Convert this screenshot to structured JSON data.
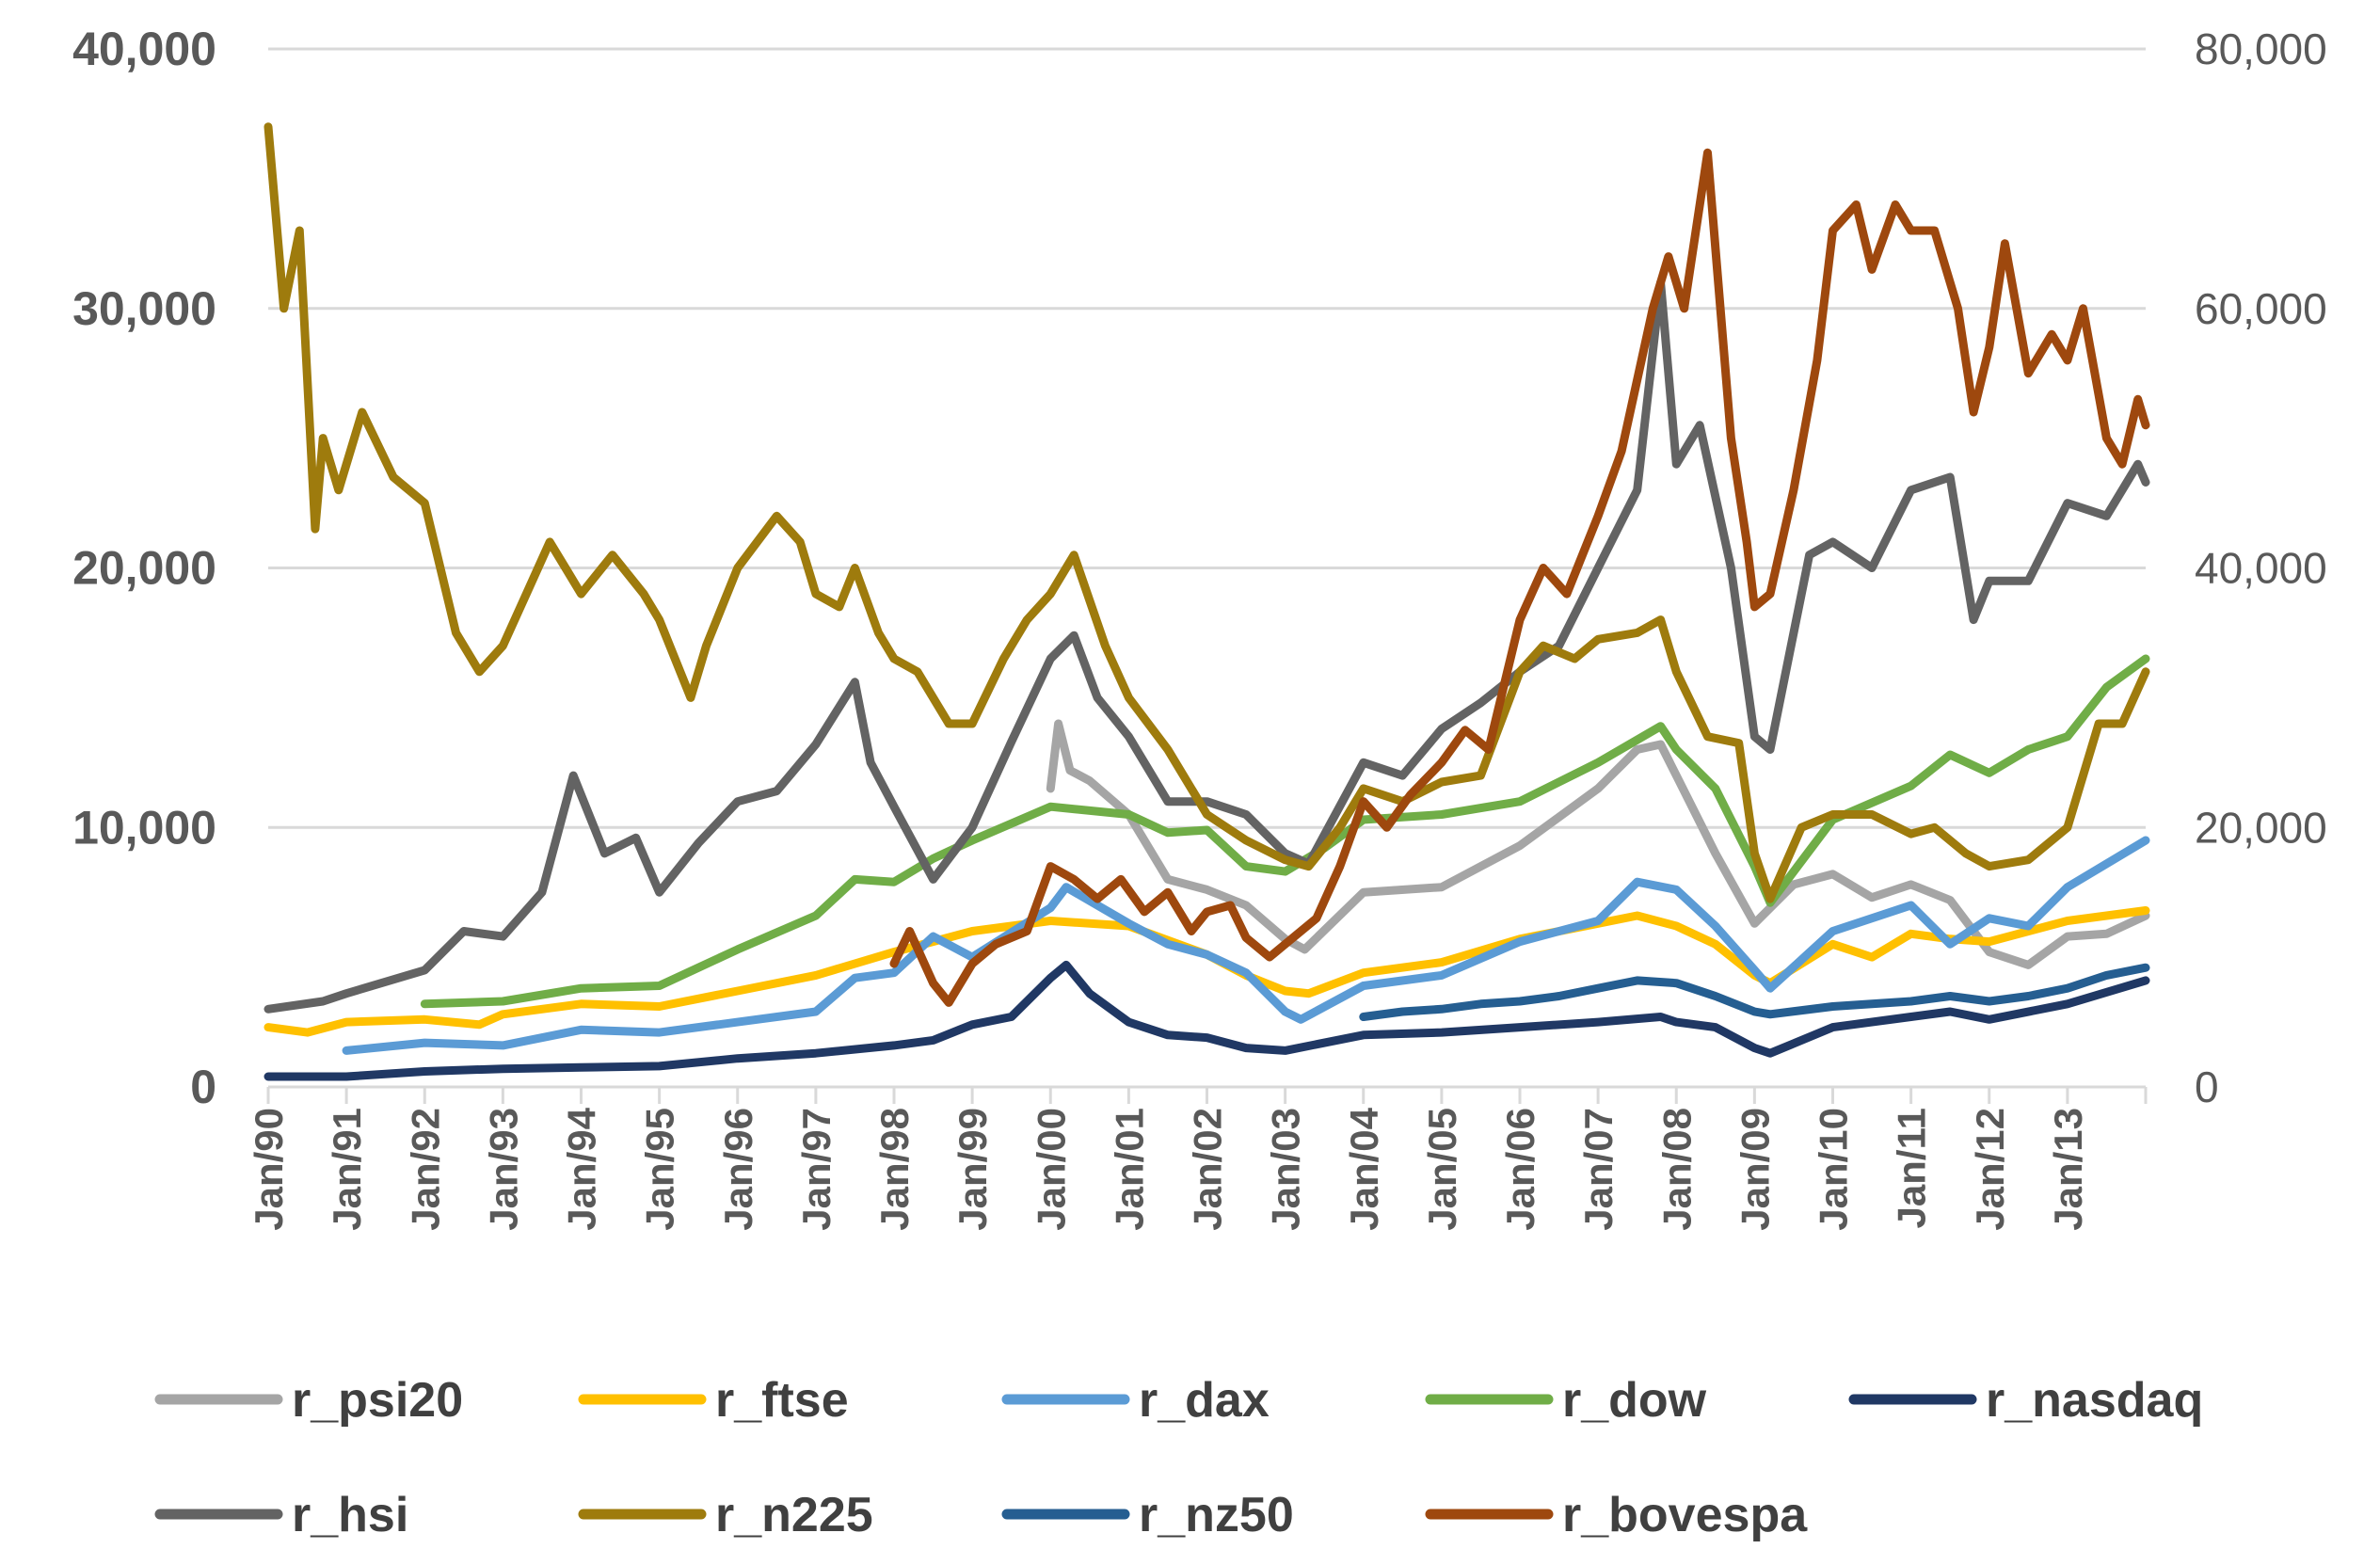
{
  "chart_data": {
    "type": "line",
    "title": "",
    "xlabel": "",
    "ylabel": "",
    "ylim": [
      0,
      40000
    ],
    "y2lim": [
      0,
      80000
    ],
    "y_ticks": [
      0,
      10000,
      20000,
      30000,
      40000
    ],
    "y_tick_labels": [
      "0",
      "10,000",
      "20,000",
      "30,000",
      "40,000"
    ],
    "y2_ticks": [
      0,
      20000,
      40000,
      60000,
      80000
    ],
    "y2_tick_labels": [
      "0",
      "20,000",
      "40,000",
      "60,000",
      "80,000"
    ],
    "xlim": [
      1990.0,
      2014.0
    ],
    "x_ticks": [
      1990,
      1991,
      1992,
      1993,
      1994,
      1995,
      1996,
      1997,
      1998,
      1999,
      2000,
      2001,
      2002,
      2003,
      2004,
      2005,
      2006,
      2007,
      2008,
      2009,
      2010,
      2011,
      2012,
      2013
    ],
    "x_tick_labels": [
      "Jan/90",
      "Jan/91",
      "Jan/92",
      "Jan/93",
      "Jan/94",
      "Jan/95",
      "Jan/96",
      "Jan/97",
      "Jan/98",
      "Jan/99",
      "Jan/00",
      "Jan/01",
      "Jan/02",
      "Jan/03",
      "Jan/04",
      "Jan/05",
      "Jan/06",
      "Jan/07",
      "Jan/08",
      "Jan/09",
      "Jan/10",
      "Jan/11",
      "Jan/12",
      "Jan/13"
    ],
    "grid": true,
    "legend_position": "bottom",
    "series": [
      {
        "name": "r_psi20",
        "color": "#a5a5a5",
        "axis": "left",
        "x": [
          2000.0,
          2000.1,
          2000.25,
          2000.5,
          2001.0,
          2001.5,
          2002.0,
          2002.5,
          2003.0,
          2003.25,
          2004.0,
          2005.0,
          2006.0,
          2006.5,
          2007.0,
          2007.5,
          2007.8,
          2008.0,
          2008.5,
          2009.0,
          2009.5,
          2010.0,
          2010.5,
          2011.0,
          2011.5,
          2012.0,
          2012.5,
          2013.0,
          2013.5,
          2014.0
        ],
        "y": [
          11500,
          14000,
          12200,
          11800,
          10500,
          8000,
          7600,
          7000,
          5700,
          5300,
          7500,
          7700,
          9300,
          10400,
          11500,
          13000,
          13200,
          12000,
          9000,
          6300,
          7800,
          8200,
          7300,
          7800,
          7200,
          5200,
          4700,
          5800,
          5900,
          6600
        ]
      },
      {
        "name": "r_ftse",
        "color": "#ffc000",
        "axis": "left",
        "x": [
          1990.0,
          1990.5,
          1991.0,
          1992.0,
          1992.7,
          1993.0,
          1994.0,
          1995.0,
          1996.0,
          1997.0,
          1998.0,
          1999.0,
          2000.0,
          2001.0,
          2002.0,
          2002.5,
          2003.0,
          2003.3,
          2004.0,
          2005.0,
          2006.0,
          2007.0,
          2007.5,
          2008.0,
          2008.5,
          2009.0,
          2009.2,
          2010.0,
          2010.5,
          2011.0,
          2011.5,
          2012.0,
          2013.0,
          2014.0
        ],
        "y": [
          2300,
          2100,
          2500,
          2600,
          2400,
          2800,
          3200,
          3100,
          3700,
          4300,
          5200,
          6000,
          6400,
          6200,
          5100,
          4300,
          3700,
          3600,
          4400,
          4800,
          5700,
          6300,
          6600,
          6200,
          5500,
          4300,
          4000,
          5500,
          5000,
          5900,
          5700,
          5600,
          6400,
          6800
        ]
      },
      {
        "name": "r_dax",
        "color": "#5b9bd5",
        "axis": "left",
        "x": [
          1991.0,
          1992.0,
          1993.0,
          1994.0,
          1995.0,
          1996.0,
          1997.0,
          1997.5,
          1998.0,
          1998.5,
          1999.0,
          2000.0,
          2000.2,
          2001.0,
          2001.5,
          2002.0,
          2002.5,
          2003.0,
          2003.2,
          2004.0,
          2005.0,
          2006.0,
          2007.0,
          2007.5,
          2008.0,
          2008.5,
          2009.0,
          2009.2,
          2010.0,
          2011.0,
          2011.5,
          2012.0,
          2012.5,
          2013.0,
          2014.0
        ],
        "y": [
          1400,
          1700,
          1600,
          2200,
          2100,
          2500,
          2900,
          4200,
          4400,
          5800,
          5000,
          6900,
          7700,
          6300,
          5500,
          5100,
          4400,
          2900,
          2600,
          3900,
          4300,
          5600,
          6400,
          7900,
          7600,
          6200,
          4500,
          3800,
          6000,
          7000,
          5500,
          6500,
          6200,
          7700,
          9500
        ]
      },
      {
        "name": "r_dow",
        "color": "#70ad47",
        "axis": "left",
        "x": [
          1992.0,
          1993.0,
          1994.0,
          1995.0,
          1996.0,
          1997.0,
          1997.5,
          1998.0,
          1998.5,
          1999.0,
          2000.0,
          2001.0,
          2001.5,
          2002.0,
          2002.5,
          2003.0,
          2003.5,
          2004.0,
          2005.0,
          2006.0,
          2007.0,
          2007.8,
          2008.0,
          2008.5,
          2009.0,
          2009.2,
          2010.0,
          2011.0,
          2011.5,
          2012.0,
          2012.5,
          2013.0,
          2013.5,
          2014.0
        ],
        "y": [
          3200,
          3300,
          3800,
          3900,
          5300,
          6600,
          8000,
          7900,
          8800,
          9500,
          10800,
          10500,
          9800,
          9900,
          8500,
          8300,
          9200,
          10300,
          10500,
          11000,
          12500,
          13900,
          13000,
          11500,
          8500,
          7100,
          10300,
          11600,
          12800,
          12100,
          13000,
          13500,
          15400,
          16500
        ]
      },
      {
        "name": "r_nasdaq",
        "color": "#203864",
        "axis": "left",
        "x": [
          1990.0,
          1991.0,
          1992.0,
          1993.0,
          1994.0,
          1995.0,
          1996.0,
          1997.0,
          1998.0,
          1998.5,
          1999.0,
          1999.5,
          2000.0,
          2000.2,
          2000.5,
          2001.0,
          2001.5,
          2002.0,
          2002.5,
          2003.0,
          2004.0,
          2005.0,
          2006.0,
          2007.0,
          2007.8,
          2008.0,
          2008.5,
          2009.0,
          2009.2,
          2010.0,
          2011.0,
          2011.5,
          2012.0,
          2013.0,
          2014.0
        ],
        "y": [
          400,
          400,
          600,
          700,
          750,
          800,
          1100,
          1300,
          1600,
          1800,
          2400,
          2700,
          4200,
          4700,
          3600,
          2500,
          2000,
          1900,
          1500,
          1400,
          2000,
          2100,
          2300,
          2500,
          2700,
          2500,
          2300,
          1500,
          1300,
          2300,
          2700,
          2900,
          2600,
          3200,
          4100
        ]
      },
      {
        "name": "r_hsi",
        "color": "#636363",
        "axis": "left",
        "x": [
          1990.0,
          1990.7,
          1991.0,
          1992.0,
          1992.5,
          1993.0,
          1993.5,
          1993.9,
          1994.3,
          1994.7,
          1995.0,
          1995.5,
          1996.0,
          1996.5,
          1997.0,
          1997.5,
          1997.7,
          1998.0,
          1998.5,
          1999.0,
          1999.5,
          2000.0,
          2000.3,
          2000.6,
          2001.0,
          2001.5,
          2002.0,
          2002.5,
          2003.0,
          2003.3,
          2004.0,
          2004.5,
          2005.0,
          2005.5,
          2006.0,
          2006.5,
          2007.0,
          2007.5,
          2007.8,
          2008.0,
          2008.3,
          2008.7,
          2009.0,
          2009.2,
          2009.7,
          2010.0,
          2010.5,
          2011.0,
          2011.5,
          2011.8,
          2012.0,
          2012.5,
          2013.0,
          2013.5,
          2013.9,
          2014.0
        ],
        "y": [
          3000,
          3300,
          3600,
          4500,
          6000,
          5800,
          7500,
          12000,
          9000,
          9600,
          7500,
          9400,
          11000,
          11400,
          13200,
          15600,
          12500,
          10800,
          8000,
          10000,
          13300,
          16500,
          17400,
          15000,
          13500,
          11000,
          11000,
          10500,
          9000,
          8600,
          12500,
          12000,
          13800,
          14800,
          16000,
          17000,
          20000,
          23000,
          31000,
          24000,
          25500,
          20000,
          13500,
          13000,
          20500,
          21000,
          20000,
          23000,
          23500,
          18000,
          19500,
          19500,
          22500,
          22000,
          24000,
          23300
        ]
      },
      {
        "name": "r_n225",
        "color": "#9e7b0d",
        "axis": "right",
        "x": [
          1990.0,
          1990.2,
          1990.4,
          1990.6,
          1990.7,
          1990.9,
          1991.2,
          1991.6,
          1992.0,
          1992.4,
          1992.7,
          1993.0,
          1993.3,
          1993.6,
          1993.8,
          1994.0,
          1994.4,
          1994.8,
          1995.0,
          1995.4,
          1995.6,
          1996.0,
          1996.5,
          1996.8,
          1997.0,
          1997.3,
          1997.5,
          1997.8,
          1998.0,
          1998.3,
          1998.7,
          1999.0,
          1999.4,
          1999.7,
          2000.0,
          2000.3,
          2000.7,
          2001.0,
          2001.5,
          2002.0,
          2002.5,
          2003.0,
          2003.3,
          2003.7,
          2004.0,
          2004.5,
          2005.0,
          2005.5,
          2006.0,
          2006.3,
          2006.7,
          2007.0,
          2007.5,
          2007.8,
          2008.0,
          2008.4,
          2008.8,
          2009.0,
          2009.2,
          2009.6,
          2010.0,
          2010.5,
          2011.0,
          2011.3,
          2011.7,
          2012.0,
          2012.5,
          2013.0,
          2013.4,
          2013.7,
          2014.0
        ],
        "y": [
          74000,
          60000,
          66000,
          43000,
          50000,
          46000,
          52000,
          47000,
          45000,
          35000,
          32000,
          34000,
          38000,
          42000,
          40000,
          38000,
          41000,
          38000,
          36000,
          30000,
          34000,
          40000,
          44000,
          42000,
          38000,
          37000,
          40000,
          35000,
          33000,
          32000,
          28000,
          28000,
          33000,
          36000,
          38000,
          41000,
          34000,
          30000,
          26000,
          21000,
          19000,
          17500,
          17000,
          20000,
          23000,
          22000,
          23500,
          24000,
          32000,
          34000,
          33000,
          34500,
          35000,
          36000,
          32000,
          27000,
          26500,
          18000,
          14500,
          20000,
          21000,
          21000,
          19500,
          20000,
          18000,
          17000,
          17500,
          20000,
          28000,
          28000,
          32000
        ]
      },
      {
        "name": "r_nz50",
        "color": "#255e91",
        "axis": "left",
        "x": [
          2004.0,
          2004.5,
          2005.0,
          2005.5,
          2006.0,
          2006.5,
          2007.0,
          2007.5,
          2008.0,
          2008.5,
          2009.0,
          2009.2,
          2010.0,
          2011.0,
          2011.5,
          2012.0,
          2012.5,
          2013.0,
          2013.5,
          2014.0
        ],
        "y": [
          2700,
          2900,
          3000,
          3200,
          3300,
          3500,
          3800,
          4100,
          4000,
          3500,
          2900,
          2800,
          3100,
          3300,
          3500,
          3300,
          3500,
          3800,
          4300,
          4600
        ]
      },
      {
        "name": "r_bovespa",
        "color": "#9e480e",
        "axis": "right",
        "x": [
          1998.0,
          1998.2,
          1998.5,
          1998.7,
          1999.0,
          1999.3,
          1999.7,
          2000.0,
          2000.3,
          2000.6,
          2000.9,
          2001.2,
          2001.5,
          2001.8,
          2002.0,
          2002.3,
          2002.5,
          2002.8,
          2003.0,
          2003.4,
          2003.7,
          2004.0,
          2004.3,
          2004.6,
          2005.0,
          2005.3,
          2005.6,
          2006.0,
          2006.3,
          2006.6,
          2007.0,
          2007.3,
          2007.7,
          2007.9,
          2008.1,
          2008.4,
          2008.7,
          2008.9,
          2009.0,
          2009.2,
          2009.5,
          2009.8,
          2010.0,
          2010.3,
          2010.5,
          2010.8,
          2011.0,
          2011.3,
          2011.6,
          2011.8,
          2012.0,
          2012.2,
          2012.5,
          2012.8,
          2013.0,
          2013.2,
          2013.5,
          2013.7,
          2013.9,
          2014.0
        ],
        "y": [
          9500,
          12000,
          8000,
          6500,
          9500,
          11000,
          12000,
          17000,
          16000,
          14500,
          16000,
          13500,
          15000,
          12000,
          13500,
          14000,
          11500,
          10000,
          11000,
          13000,
          17000,
          22000,
          20000,
          22500,
          25000,
          27500,
          26000,
          36000,
          40000,
          38000,
          44000,
          49000,
          60000,
          64000,
          60000,
          72000,
          50000,
          42000,
          37000,
          38000,
          46000,
          56000,
          66000,
          68000,
          63000,
          68000,
          66000,
          66000,
          60000,
          52000,
          57000,
          65000,
          55000,
          58000,
          56000,
          60000,
          50000,
          48000,
          53000,
          51000
        ]
      }
    ]
  }
}
